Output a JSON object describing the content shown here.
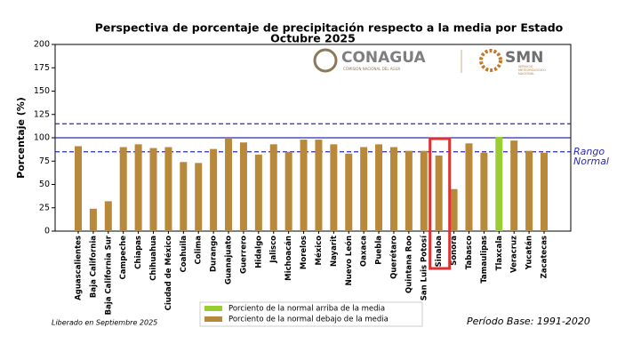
{
  "chart_data": {
    "type": "bar",
    "title": "Perspectiva de porcentaje de precipitación respecto a la media por Estado",
    "subtitle": "Octubre 2025",
    "ylabel": "Porcentaje (%)",
    "categories": [
      "Aguascalientes",
      "Baja California",
      "Baja California Sur",
      "Campeche",
      "Chiapas",
      "Chihuahua",
      "Ciudad de México",
      "Coahuila",
      "Colima",
      "Durango",
      "Guanajuato",
      "Guerrero",
      "Hidalgo",
      "Jalisco",
      "Michoacán",
      "Morelos",
      "México",
      "Nayarit",
      "Nuevo León",
      "Oaxaca",
      "Puebla",
      "Querétaro",
      "Quintana Roo",
      "San Luis Potosí",
      "Sinaloa",
      "Sonora",
      "Tabasco",
      "Tamaulipas",
      "Tlaxcala",
      "Veracruz",
      "Yucatán",
      "Zacatecas"
    ],
    "series": [
      {
        "name": "Porciento de la normal arriba de la media",
        "color": "#9acd32",
        "values": [
          null,
          null,
          null,
          null,
          null,
          null,
          null,
          null,
          null,
          null,
          null,
          null,
          null,
          null,
          null,
          null,
          null,
          null,
          null,
          null,
          null,
          null,
          null,
          null,
          null,
          null,
          null,
          null,
          101,
          null,
          null,
          null
        ]
      },
      {
        "name": "Porciento de la normal debajo de la media",
        "color": "#b8893a",
        "values": [
          91,
          24,
          32,
          90,
          93,
          89,
          90,
          74,
          73,
          88,
          100,
          95,
          82,
          93,
          85,
          98,
          98,
          93,
          83,
          90,
          93,
          90,
          86,
          86,
          81,
          45,
          94,
          84,
          null,
          97,
          86,
          84
        ]
      }
    ],
    "ylim": [
      0,
      200
    ],
    "yticks": [
      0,
      25,
      50,
      75,
      100,
      125,
      150,
      175,
      200
    ],
    "reference_lines": [
      {
        "value": 115,
        "style": "dashed"
      },
      {
        "value": 100,
        "style": "solid"
      },
      {
        "value": 85,
        "style": "dashed"
      }
    ],
    "reference_color": "#2b2bb0",
    "range_label": [
      "Rango",
      "Normal"
    ],
    "highlight": 24,
    "release_note": "Liberado en Septiembre 2025",
    "base_period": "Período Base: 1991-2020",
    "logos": {
      "conagua": "CONAGUA",
      "conagua_sub": "COMISIÓN NACIONAL DEL AGUA",
      "smn": "SMN",
      "smn_sub": [
        "SERVICIO",
        "METEOROLÓGICO",
        "NACIONAL"
      ]
    }
  }
}
